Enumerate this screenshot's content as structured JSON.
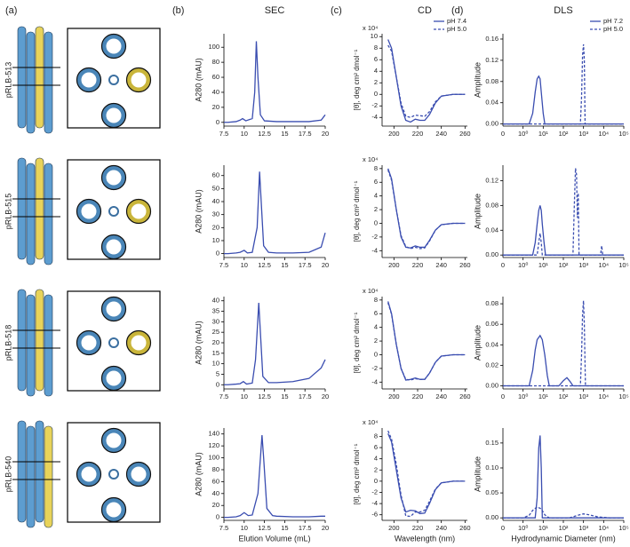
{
  "figure": {
    "panel_a_label": "(a)",
    "constructs": [
      "pRLB-513",
      "pRLB-515",
      "pRLB-518",
      "pRLB-540"
    ]
  },
  "chart_data": [
    {
      "type": "line",
      "panel_label": "(b)",
      "title": "SEC",
      "ylabel": "A280 (mAU)",
      "xlim": [
        7.5,
        20
      ],
      "xticks": [
        7.5,
        10,
        12.5,
        15,
        17.5,
        20
      ],
      "ylim": [
        -5,
        118
      ],
      "yticks": [
        0,
        20,
        40,
        60,
        80,
        100
      ],
      "series": [
        {
          "color": "#3a4db0",
          "x": [
            7.5,
            8,
            9,
            9.5,
            9.8,
            10.2,
            11,
            11.3,
            11.5,
            11.7,
            12,
            12.5,
            14,
            16,
            18,
            19.5,
            20
          ],
          "y": [
            0,
            0,
            1,
            3,
            5,
            2,
            5,
            40,
            108,
            60,
            10,
            2,
            1,
            1,
            1,
            3,
            10
          ]
        }
      ]
    },
    {
      "type": "line",
      "panel_label": "(c)",
      "title": "CD",
      "ylabel": "[θ], deg cm² dmol⁻¹",
      "y_multiplier": "x 10⁴",
      "xlim": [
        190,
        262
      ],
      "xticks": [
        200,
        220,
        240,
        260
      ],
      "ylim": [
        -5.5,
        10.5
      ],
      "yticks": [
        -4,
        -2,
        0,
        2,
        4,
        6,
        8,
        10
      ],
      "legend": "upper right",
      "series": [
        {
          "name": "pH 7.4",
          "color": "#3a4db0",
          "x": [
            195,
            198,
            202,
            206,
            210,
            214,
            218,
            222,
            226,
            230,
            235,
            240,
            250,
            260
          ],
          "y": [
            9.5,
            8,
            3,
            -2,
            -4.5,
            -4.8,
            -4.3,
            -4.5,
            -4.5,
            -3.5,
            -1.5,
            -0.3,
            0,
            0
          ]
        },
        {
          "name": "pH 5.0",
          "color": "#3a4db0",
          "dashed": true,
          "x": [
            195,
            198,
            202,
            206,
            210,
            214,
            218,
            222,
            226,
            230,
            235,
            240,
            250,
            260
          ],
          "y": [
            8.5,
            7.5,
            3,
            -1.5,
            -3.8,
            -4,
            -3.6,
            -3.7,
            -3.8,
            -3,
            -1.3,
            -0.3,
            0,
            0
          ]
        }
      ]
    },
    {
      "type": "line",
      "panel_label": "(d)",
      "title": "DLS",
      "ylabel": "Amplitude",
      "xscale": "log",
      "x_origin_label": "0",
      "xlim": [
        0.1,
        100000
      ],
      "xticks": [
        {
          "value": 1,
          "label": "10⁰"
        },
        {
          "value": 10,
          "label": "10¹"
        },
        {
          "value": 100,
          "label": "10²"
        },
        {
          "value": 1000,
          "label": "10³"
        },
        {
          "value": 10000,
          "label": "10⁴"
        },
        {
          "value": 100000,
          "label": "10⁵"
        }
      ],
      "ylim": [
        -0.004,
        0.17
      ],
      "yticks": [
        {
          "value": 0,
          "label": "0.00"
        },
        0.04,
        0.08,
        0.12,
        0.16
      ],
      "legend": "upper right",
      "series": [
        {
          "name": "pH 7.2",
          "color": "#3a4db0",
          "x": [
            0.1,
            2,
            3,
            4,
            5,
            6,
            7,
            8,
            10,
            12,
            100000
          ],
          "y": [
            0,
            0,
            0.02,
            0.06,
            0.085,
            0.09,
            0.085,
            0.06,
            0.02,
            0,
            0
          ]
        },
        {
          "name": "pH 5.0",
          "color": "#3a4db0",
          "dashed": true,
          "x": [
            0.1,
            700,
            800,
            900,
            1000,
            1100,
            1200,
            100000
          ],
          "y": [
            0,
            0,
            0.05,
            0.13,
            0.15,
            0.12,
            0,
            0
          ]
        }
      ]
    },
    {
      "type": "line",
      "ylabel": "A280 (mAU)",
      "xlim": [
        7.5,
        20
      ],
      "xticks": [
        7.5,
        10,
        12.5,
        15,
        17.5,
        20
      ],
      "ylim": [
        -3,
        68
      ],
      "yticks": [
        0,
        10,
        20,
        30,
        40,
        50,
        60
      ],
      "series": [
        {
          "color": "#3a4db0",
          "x": [
            7.5,
            8,
            9,
            9.5,
            10,
            10.4,
            11,
            11.6,
            11.9,
            12.1,
            12.4,
            13,
            14,
            16,
            18,
            19.5,
            20
          ],
          "y": [
            0,
            0,
            0.5,
            1,
            2.5,
            0.5,
            1,
            20,
            63,
            40,
            6,
            1,
            0.5,
            0.5,
            1,
            5,
            16
          ]
        }
      ]
    },
    {
      "type": "line",
      "ylabel": "[θ], deg cm² dmol⁻¹",
      "y_multiplier": "x 10⁴",
      "xlim": [
        190,
        262
      ],
      "xticks": [
        200,
        220,
        240,
        260
      ],
      "ylim": [
        -5,
        8.5
      ],
      "yticks": [
        -4,
        -2,
        0,
        2,
        4,
        6,
        8
      ],
      "series": [
        {
          "color": "#3a4db0",
          "x": [
            195,
            198,
            202,
            206,
            210,
            214,
            218,
            222,
            226,
            230,
            235,
            240,
            250,
            260
          ],
          "y": [
            8,
            6.5,
            2,
            -2,
            -3.5,
            -3.6,
            -3.3,
            -3.5,
            -3.5,
            -2.5,
            -1,
            -0.2,
            0,
            0
          ]
        },
        {
          "color": "#3a4db0",
          "dashed": true,
          "x": [
            195,
            198,
            202,
            206,
            210,
            214,
            218,
            222,
            226,
            230,
            235,
            240,
            250,
            260
          ],
          "y": [
            7.8,
            6.3,
            2,
            -1.8,
            -3.4,
            -3.7,
            -3.5,
            -3.7,
            -3.6,
            -2.6,
            -1,
            -0.2,
            0,
            0
          ]
        }
      ]
    },
    {
      "type": "line",
      "ylabel": "Amplitude",
      "xscale": "log",
      "x_origin_label": "0",
      "xlim": [
        0.1,
        100000
      ],
      "xticks": [
        {
          "value": 1,
          "label": "10⁰"
        },
        {
          "value": 10,
          "label": "10¹"
        },
        {
          "value": 100,
          "label": "10²"
        },
        {
          "value": 1000,
          "label": "10³"
        },
        {
          "value": 10000,
          "label": "10⁴"
        },
        {
          "value": 100000,
          "label": "10⁵"
        }
      ],
      "ylim": [
        -0.004,
        0.145
      ],
      "yticks": [
        {
          "value": 0,
          "label": "0.00"
        },
        0.04,
        0.08,
        0.12
      ],
      "series": [
        {
          "color": "#3a4db0",
          "x": [
            0.1,
            3,
            4,
            5,
            6,
            7,
            8,
            9,
            11,
            13,
            100000
          ],
          "y": [
            0,
            0,
            0.02,
            0.05,
            0.072,
            0.08,
            0.072,
            0.05,
            0.02,
            0,
            0
          ]
        },
        {
          "color": "#3a4db0",
          "dashed": true,
          "x": [
            0.1,
            5,
            6,
            7,
            8,
            9,
            300,
            350,
            400,
            450,
            500,
            550,
            600,
            7000,
            8000,
            9000,
            100000
          ],
          "y": [
            0,
            0,
            0.02,
            0.035,
            0.02,
            0,
            0,
            0.08,
            0.14,
            0.13,
            0.06,
            0.1,
            0,
            0,
            0.015,
            0,
            0
          ]
        }
      ]
    },
    {
      "type": "line",
      "ylabel": "A280 (mAU)",
      "xlim": [
        7.5,
        20
      ],
      "xticks": [
        7.5,
        10,
        12.5,
        15,
        17.5,
        20
      ],
      "ylim": [
        -2,
        42
      ],
      "yticks": [
        0,
        5,
        10,
        15,
        20,
        25,
        30,
        35,
        40
      ],
      "series": [
        {
          "color": "#3a4db0",
          "x": [
            7.5,
            8,
            9,
            9.5,
            9.9,
            10.3,
            11,
            11.4,
            11.8,
            12,
            12.3,
            13,
            14,
            16,
            18,
            19.5,
            20
          ],
          "y": [
            0,
            0,
            0.3,
            0.5,
            1.5,
            0.3,
            0.8,
            12,
            39,
            25,
            4,
            1,
            1,
            1.5,
            3,
            8,
            12
          ]
        }
      ]
    },
    {
      "type": "line",
      "ylabel": "[θ], deg cm² dmol⁻¹",
      "y_multiplier": "x 10⁴",
      "xlim": [
        190,
        262
      ],
      "xticks": [
        200,
        220,
        240,
        260
      ],
      "ylim": [
        -5,
        8.5
      ],
      "yticks": [
        -4,
        -2,
        0,
        2,
        4,
        6,
        8
      ],
      "series": [
        {
          "color": "#3a4db0",
          "x": [
            195,
            198,
            202,
            206,
            210,
            214,
            218,
            222,
            226,
            230,
            235,
            240,
            250,
            260
          ],
          "y": [
            7.8,
            6,
            1.5,
            -2,
            -3.7,
            -3.6,
            -3.4,
            -3.6,
            -3.6,
            -2.7,
            -1.1,
            -0.2,
            0,
            0
          ]
        },
        {
          "color": "#3a4db0",
          "dashed": true,
          "x": [
            195,
            198,
            202,
            206,
            210,
            214,
            218,
            222,
            226,
            230,
            235,
            240,
            250,
            260
          ],
          "y": [
            7.6,
            5.9,
            1.5,
            -2,
            -3.6,
            -3.7,
            -3.5,
            -3.6,
            -3.6,
            -2.7,
            -1.1,
            -0.2,
            0,
            0
          ]
        }
      ]
    },
    {
      "type": "line",
      "ylabel": "Amplitude",
      "xscale": "log",
      "x_origin_label": "0",
      "xlim": [
        0.1,
        100000
      ],
      "xticks": [
        {
          "value": 1,
          "label": "10⁰"
        },
        {
          "value": 10,
          "label": "10¹"
        },
        {
          "value": 100,
          "label": "10²"
        },
        {
          "value": 1000,
          "label": "10³"
        },
        {
          "value": 10000,
          "label": "10⁴"
        },
        {
          "value": 100000,
          "label": "10⁵"
        }
      ],
      "ylim": [
        -0.003,
        0.087
      ],
      "yticks": [
        {
          "value": 0,
          "label": "0.00"
        },
        0.02,
        0.04,
        0.06,
        0.08
      ],
      "series": [
        {
          "color": "#3a4db0",
          "x": [
            0.1,
            2,
            3,
            4,
            5,
            7,
            9,
            12,
            16,
            20,
            60,
            100,
            150,
            220,
            300,
            100000
          ],
          "y": [
            0,
            0,
            0.015,
            0.035,
            0.045,
            0.049,
            0.045,
            0.03,
            0.01,
            0,
            0,
            0.005,
            0.008,
            0.004,
            0,
            0
          ]
        },
        {
          "color": "#3a4db0",
          "dashed": true,
          "x": [
            0.1,
            700,
            800,
            900,
            1000,
            1100,
            1250,
            100000
          ],
          "y": [
            0,
            0,
            0.03,
            0.07,
            0.083,
            0.06,
            0,
            0
          ]
        }
      ]
    },
    {
      "type": "line",
      "ylabel": "A280 (mAU)",
      "xlabel": "Elution Volume (mL)",
      "xlim": [
        7.5,
        20
      ],
      "xticks": [
        7.5,
        10,
        12.5,
        15,
        17.5,
        20
      ],
      "ylim": [
        -5,
        150
      ],
      "yticks": [
        0,
        20,
        40,
        60,
        80,
        100,
        120,
        140
      ],
      "series": [
        {
          "color": "#3a4db0",
          "x": [
            7.5,
            8,
            9,
            9.5,
            10,
            10.5,
            11,
            11.7,
            12.2,
            12.4,
            12.8,
            13.5,
            14,
            16,
            18,
            19.5,
            20
          ],
          "y": [
            0,
            0,
            1,
            3,
            8,
            3,
            4,
            40,
            138,
            100,
            15,
            3,
            2,
            1,
            1,
            2,
            2
          ]
        }
      ]
    },
    {
      "type": "line",
      "ylabel": "[θ], deg cm² dmol⁻¹",
      "y_multiplier": "x 10⁴",
      "xlabel": "Wavelength (nm)",
      "xlim": [
        190,
        262
      ],
      "xticks": [
        200,
        220,
        240,
        260
      ],
      "ylim": [
        -7,
        9.5
      ],
      "yticks": [
        -6,
        -4,
        -2,
        0,
        2,
        4,
        6,
        8
      ],
      "series": [
        {
          "color": "#3a4db0",
          "x": [
            195,
            198,
            202,
            206,
            210,
            214,
            218,
            222,
            226,
            230,
            235,
            240,
            250,
            260
          ],
          "y": [
            8.5,
            7,
            2,
            -3,
            -5.5,
            -5.2,
            -5.3,
            -5.8,
            -5.7,
            -4,
            -1.5,
            -0.3,
            0,
            0
          ]
        },
        {
          "color": "#3a4db0",
          "dashed": true,
          "x": [
            195,
            198,
            202,
            206,
            210,
            214,
            218,
            222,
            226,
            230,
            235,
            240,
            250,
            260
          ],
          "y": [
            9,
            7.5,
            3,
            -2.5,
            -6.2,
            -6.3,
            -5.5,
            -5.5,
            -5.2,
            -3.6,
            -1.4,
            -0.3,
            0,
            0
          ]
        }
      ]
    },
    {
      "type": "line",
      "ylabel": "Amplitude",
      "xlabel": "Hydrodynamic Diameter (nm)",
      "xscale": "log",
      "x_origin_label": "0",
      "xlim": [
        0.1,
        100000
      ],
      "xticks": [
        {
          "value": 1,
          "label": "10⁰"
        },
        {
          "value": 10,
          "label": "10¹"
        },
        {
          "value": 100,
          "label": "10²"
        },
        {
          "value": 1000,
          "label": "10³"
        },
        {
          "value": 10000,
          "label": "10⁴"
        },
        {
          "value": 100000,
          "label": "10⁵"
        }
      ],
      "ylim": [
        -0.005,
        0.18
      ],
      "yticks": [
        {
          "value": 0,
          "label": "0.00"
        },
        0.05,
        {
          "value": 0.1,
          "label": "0.10"
        },
        0.15
      ],
      "series": [
        {
          "color": "#3a4db0",
          "x": [
            0.1,
            4,
            5,
            6,
            7,
            8,
            9,
            100000
          ],
          "y": [
            0,
            0,
            0.04,
            0.14,
            0.165,
            0.1,
            0,
            0
          ]
        },
        {
          "color": "#3a4db0",
          "dashed": true,
          "x": [
            0.1,
            1,
            2,
            3,
            5,
            8,
            12,
            20,
            50,
            200,
            500,
            1000,
            2000,
            5000,
            20000,
            100000
          ],
          "y": [
            0,
            0,
            0.005,
            0.015,
            0.022,
            0.018,
            0.006,
            0,
            0,
            0,
            0.005,
            0.008,
            0.006,
            0.002,
            0,
            0
          ]
        }
      ]
    }
  ]
}
